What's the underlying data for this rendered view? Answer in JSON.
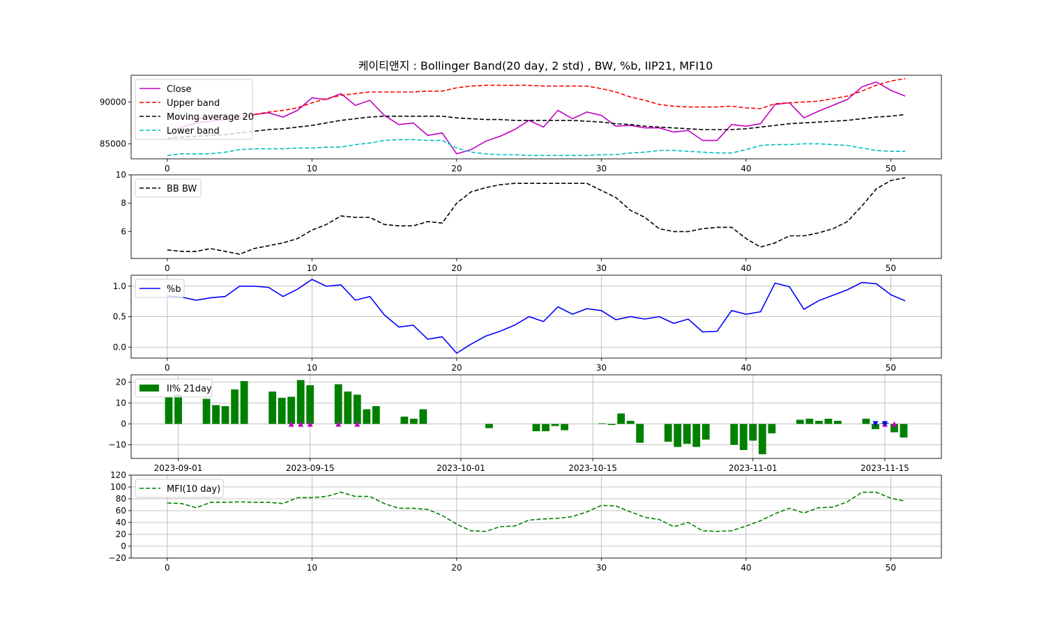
{
  "title": "케이티앤지 : Bollinger Band(20 day, 2 std) , BW, %b, IIP21, MFI10",
  "chart_data": [
    {
      "type": "line",
      "panel": "price",
      "x": [
        0,
        1,
        2,
        3,
        4,
        5,
        6,
        7,
        8,
        9,
        10,
        11,
        12,
        13,
        14,
        15,
        16,
        17,
        18,
        19,
        20,
        21,
        22,
        23,
        24,
        25,
        26,
        27,
        28,
        29,
        30,
        31,
        32,
        33,
        34,
        35,
        36,
        37,
        38,
        39,
        40,
        41,
        42,
        43,
        44,
        45,
        46,
        47,
        48,
        49,
        50,
        51
      ],
      "series": [
        {
          "name": "Close",
          "color": "#bf00bf",
          "dash": "solid",
          "values": [
            86200,
            87000,
            87500,
            87700,
            87900,
            88000,
            88500,
            88700,
            88200,
            89000,
            90500,
            90300,
            91000,
            89600,
            90200,
            88400,
            87300,
            87500,
            86000,
            86300,
            83800,
            84300,
            85300,
            85900,
            86700,
            87800,
            87000,
            89000,
            88000,
            88800,
            88400,
            87100,
            87200,
            86900,
            86900,
            86400,
            86600,
            85400,
            85400,
            87300,
            87100,
            87400,
            89700,
            89900,
            88100,
            88900,
            89600,
            90300,
            91800,
            92400,
            91400,
            90700
          ]
        },
        {
          "name": "Upper band",
          "color": "#ff0000",
          "dash": "dashed",
          "values": [
            87900,
            88000,
            88000,
            88100,
            88200,
            88300,
            88500,
            88800,
            89000,
            89300,
            89900,
            90400,
            90800,
            91000,
            91200,
            91200,
            91200,
            91200,
            91300,
            91300,
            91700,
            91900,
            92000,
            92000,
            92000,
            92000,
            91900,
            91900,
            91900,
            91900,
            91600,
            91200,
            90600,
            90200,
            89700,
            89500,
            89400,
            89400,
            89400,
            89500,
            89300,
            89200,
            89800,
            89900,
            90000,
            90100,
            90400,
            90700,
            91300,
            92000,
            92500,
            92800
          ]
        },
        {
          "name": "Moving average 20",
          "color": "#000000",
          "dash": "dashed",
          "values": [
            85700,
            85800,
            85900,
            86000,
            86100,
            86300,
            86500,
            86700,
            86800,
            87000,
            87200,
            87500,
            87800,
            88000,
            88200,
            88300,
            88300,
            88300,
            88300,
            88300,
            88100,
            88000,
            87900,
            87900,
            87800,
            87800,
            87800,
            87800,
            87800,
            87700,
            87600,
            87400,
            87300,
            87100,
            87000,
            86900,
            86800,
            86700,
            86700,
            86700,
            86800,
            87000,
            87200,
            87400,
            87500,
            87600,
            87700,
            87800,
            88000,
            88200,
            88300,
            88500
          ]
        },
        {
          "name": "Lower band",
          "color": "#00bfbf",
          "dash": "dashed",
          "values": [
            83600,
            83800,
            83800,
            83800,
            84000,
            84300,
            84400,
            84400,
            84400,
            84500,
            84500,
            84600,
            84600,
            84900,
            85100,
            85400,
            85500,
            85500,
            85400,
            85400,
            84500,
            84000,
            83800,
            83700,
            83700,
            83600,
            83600,
            83600,
            83600,
            83600,
            83700,
            83700,
            83900,
            84000,
            84200,
            84200,
            84100,
            84000,
            83900,
            83900,
            84300,
            84800,
            84900,
            84900,
            85000,
            85000,
            84900,
            84800,
            84500,
            84200,
            84100,
            84100
          ]
        }
      ],
      "xlim": [
        -2.5,
        53.5
      ],
      "ylim": [
        83200,
        93200
      ],
      "yticks": [
        85000,
        90000
      ],
      "ytick_labels": [
        "85000",
        "90000"
      ],
      "xticks": [
        0,
        10,
        20,
        30,
        40,
        50
      ],
      "xtick_labels": [
        "0",
        "10",
        "20",
        "30",
        "40",
        "50"
      ],
      "grid": false,
      "legend": "upper-left"
    },
    {
      "type": "line",
      "panel": "bandwidth",
      "x": [
        0,
        1,
        2,
        3,
        4,
        5,
        6,
        7,
        8,
        9,
        10,
        11,
        12,
        13,
        14,
        15,
        16,
        17,
        18,
        19,
        20,
        21,
        22,
        23,
        24,
        25,
        26,
        27,
        28,
        29,
        30,
        31,
        32,
        33,
        34,
        35,
        36,
        37,
        38,
        39,
        40,
        41,
        42,
        43,
        44,
        45,
        46,
        47,
        48,
        49,
        50,
        51
      ],
      "series": [
        {
          "name": "BB BW",
          "color": "#000000",
          "dash": "dashed",
          "values": [
            4.7,
            4.6,
            4.6,
            4.8,
            4.6,
            4.4,
            4.8,
            5.0,
            5.2,
            5.5,
            6.1,
            6.5,
            7.1,
            7.0,
            7.0,
            6.5,
            6.4,
            6.4,
            6.7,
            6.6,
            8.0,
            8.8,
            9.1,
            9.3,
            9.4,
            9.4,
            9.4,
            9.4,
            9.4,
            9.4,
            8.9,
            8.4,
            7.5,
            7.0,
            6.2,
            6.0,
            6.0,
            6.2,
            6.3,
            6.3,
            5.5,
            4.9,
            5.2,
            5.7,
            5.7,
            5.9,
            6.2,
            6.7,
            7.8,
            9.0,
            9.6,
            9.8
          ]
        }
      ],
      "xlim": [
        -2.5,
        53.5
      ],
      "ylim": [
        4.1,
        10.0
      ],
      "yticks": [
        6,
        8,
        10
      ],
      "ytick_labels": [
        "6",
        "8",
        "10"
      ],
      "xticks": [
        0,
        10,
        20,
        30,
        40,
        50
      ],
      "xtick_labels": [
        "0",
        "10",
        "20",
        "30",
        "40",
        "50"
      ],
      "grid": false,
      "legend": "upper-left"
    },
    {
      "type": "line",
      "panel": "percent_b",
      "x": [
        0,
        1,
        2,
        3,
        4,
        5,
        6,
        7,
        8,
        9,
        10,
        11,
        12,
        13,
        14,
        15,
        16,
        17,
        18,
        19,
        20,
        21,
        22,
        23,
        24,
        25,
        26,
        27,
        28,
        29,
        30,
        31,
        32,
        33,
        34,
        35,
        36,
        37,
        38,
        39,
        40,
        41,
        42,
        43,
        44,
        45,
        46,
        47,
        48,
        49,
        50,
        51
      ],
      "series": [
        {
          "name": "%b",
          "color": "#0000ff",
          "dash": "solid",
          "values": [
            0.84,
            0.82,
            0.77,
            0.81,
            0.83,
            1.0,
            1.0,
            0.98,
            0.83,
            0.95,
            1.11,
            1.0,
            1.02,
            0.77,
            0.83,
            0.53,
            0.33,
            0.36,
            0.13,
            0.17,
            -0.1,
            0.05,
            0.18,
            0.26,
            0.36,
            0.5,
            0.42,
            0.66,
            0.54,
            0.63,
            0.6,
            0.45,
            0.5,
            0.46,
            0.5,
            0.39,
            0.46,
            0.25,
            0.26,
            0.6,
            0.54,
            0.58,
            1.05,
            0.99,
            0.62,
            0.76,
            0.85,
            0.94,
            1.06,
            1.04,
            0.86,
            0.76
          ]
        }
      ],
      "xlim": [
        -2.5,
        53.5
      ],
      "ylim": [
        -0.18,
        1.18
      ],
      "yticks": [
        0.0,
        0.5,
        1.0
      ],
      "ytick_labels": [
        "0.0",
        "0.5",
        "1.0"
      ],
      "xticks": [
        0,
        10,
        20,
        30,
        40,
        50
      ],
      "xtick_labels": [
        "0",
        "10",
        "20",
        "30",
        "40",
        "50"
      ],
      "grid": true,
      "legend": "upper-left"
    },
    {
      "type": "bar",
      "panel": "iip",
      "x_type": "date",
      "bars": [
        {
          "date": "2023-08-31",
          "value": 13.0
        },
        {
          "date": "2023-09-01",
          "value": 14.0
        },
        {
          "date": "2023-09-04",
          "value": 12.0
        },
        {
          "date": "2023-09-05",
          "value": 9.0
        },
        {
          "date": "2023-09-06",
          "value": 8.5
        },
        {
          "date": "2023-09-07",
          "value": 16.5
        },
        {
          "date": "2023-09-08",
          "value": 20.5
        },
        {
          "date": "2023-09-11",
          "value": 15.5
        },
        {
          "date": "2023-09-12",
          "value": 12.5
        },
        {
          "date": "2023-09-13",
          "value": 13.0
        },
        {
          "date": "2023-09-14",
          "value": 21.0
        },
        {
          "date": "2023-09-15",
          "value": 18.5
        },
        {
          "date": "2023-09-18",
          "value": 19.0
        },
        {
          "date": "2023-09-19",
          "value": 15.5
        },
        {
          "date": "2023-09-20",
          "value": 14.0
        },
        {
          "date": "2023-09-21",
          "value": 7.0
        },
        {
          "date": "2023-09-22",
          "value": 8.5
        },
        {
          "date": "2023-09-25",
          "value": 3.5
        },
        {
          "date": "2023-09-26",
          "value": 2.5
        },
        {
          "date": "2023-09-27",
          "value": 7.0
        },
        {
          "date": "2023-10-04",
          "value": -2.0
        },
        {
          "date": "2023-10-09",
          "value": -3.5
        },
        {
          "date": "2023-10-10",
          "value": -3.5
        },
        {
          "date": "2023-10-11",
          "value": -1.0
        },
        {
          "date": "2023-10-12",
          "value": -3.0
        },
        {
          "date": "2023-10-16",
          "value": 0.3
        },
        {
          "date": "2023-10-17",
          "value": -0.5
        },
        {
          "date": "2023-10-18",
          "value": 5.0
        },
        {
          "date": "2023-10-19",
          "value": 1.5
        },
        {
          "date": "2023-10-20",
          "value": -9.0
        },
        {
          "date": "2023-10-23",
          "value": -8.5
        },
        {
          "date": "2023-10-24",
          "value": -11.0
        },
        {
          "date": "2023-10-25",
          "value": -9.5
        },
        {
          "date": "2023-10-26",
          "value": -11.0
        },
        {
          "date": "2023-10-27",
          "value": -7.5
        },
        {
          "date": "2023-10-30",
          "value": -10.0
        },
        {
          "date": "2023-10-31",
          "value": -12.5
        },
        {
          "date": "2023-11-01",
          "value": -8.0
        },
        {
          "date": "2023-11-02",
          "value": -14.5
        },
        {
          "date": "2023-11-03",
          "value": -4.5
        },
        {
          "date": "2023-11-06",
          "value": 2.0
        },
        {
          "date": "2023-11-07",
          "value": 2.5
        },
        {
          "date": "2023-11-08",
          "value": 1.5
        },
        {
          "date": "2023-11-09",
          "value": 2.5
        },
        {
          "date": "2023-11-10",
          "value": 1.5
        },
        {
          "date": "2023-11-13",
          "value": 2.5
        },
        {
          "date": "2023-11-14",
          "value": -2.5
        },
        {
          "date": "2023-11-15",
          "value": 0.5
        },
        {
          "date": "2023-11-16",
          "value": -4.0
        },
        {
          "date": "2023-11-17",
          "value": -6.5
        }
      ],
      "buy_markers": [
        "2023-09-13",
        "2023-09-14",
        "2023-09-15",
        "2023-09-18",
        "2023-09-20",
        "2023-11-15",
        "2023-11-16"
      ],
      "sell_markers": [
        "2023-11-14",
        "2023-11-15"
      ],
      "series_name": "II% 21day",
      "bar_color": "#008000",
      "buy_marker_color": "#bf00bf",
      "sell_marker_color": "#0000ff",
      "xlim": [
        "2023-08-27",
        "2023-11-21"
      ],
      "ylim": [
        -16.5,
        23.5
      ],
      "yticks": [
        -10,
        0,
        10,
        20
      ],
      "ytick_labels": [
        "−10",
        "0",
        "10",
        "20"
      ],
      "xticks": [
        "2023-09-01",
        "2023-09-15",
        "2023-10-01",
        "2023-10-15",
        "2023-11-01",
        "2023-11-15"
      ],
      "xtick_labels": [
        "2023-09-01",
        "2023-09-15",
        "2023-10-01",
        "2023-10-15",
        "2023-11-01",
        "2023-11-15"
      ],
      "grid": true,
      "legend": "upper-left"
    },
    {
      "type": "line",
      "panel": "mfi",
      "x": [
        0,
        1,
        2,
        3,
        4,
        5,
        6,
        7,
        8,
        9,
        10,
        11,
        12,
        13,
        14,
        15,
        16,
        17,
        18,
        19,
        20,
        21,
        22,
        23,
        24,
        25,
        26,
        27,
        28,
        29,
        30,
        31,
        32,
        33,
        34,
        35,
        36,
        37,
        38,
        39,
        40,
        41,
        42,
        43,
        44,
        45,
        46,
        47,
        48,
        49,
        50,
        51
      ],
      "series": [
        {
          "name": "MFI(10 day)",
          "color": "#008000",
          "dash": "dashed",
          "values": [
            73,
            72,
            65,
            74,
            74,
            75,
            74,
            74,
            72,
            82,
            82,
            84,
            91,
            84,
            84,
            72,
            64,
            64,
            62,
            52,
            37,
            26,
            25,
            33,
            34,
            44,
            46,
            47,
            50,
            58,
            69,
            68,
            58,
            49,
            45,
            33,
            40,
            26,
            25,
            26,
            34,
            43,
            55,
            64,
            56,
            65,
            66,
            75,
            91,
            91,
            81,
            76
          ]
        }
      ],
      "xlim": [
        -2.5,
        53.5
      ],
      "ylim": [
        -20,
        120
      ],
      "yticks": [
        -20,
        0,
        20,
        40,
        60,
        80,
        100,
        120
      ],
      "ytick_labels": [
        "−20",
        "0",
        "20",
        "40",
        "60",
        "80",
        "100",
        "120"
      ],
      "xticks": [
        0,
        10,
        20,
        30,
        40,
        50
      ],
      "xtick_labels": [
        "0",
        "10",
        "20",
        "30",
        "40",
        "50"
      ],
      "grid": true,
      "legend": "upper-left"
    }
  ]
}
